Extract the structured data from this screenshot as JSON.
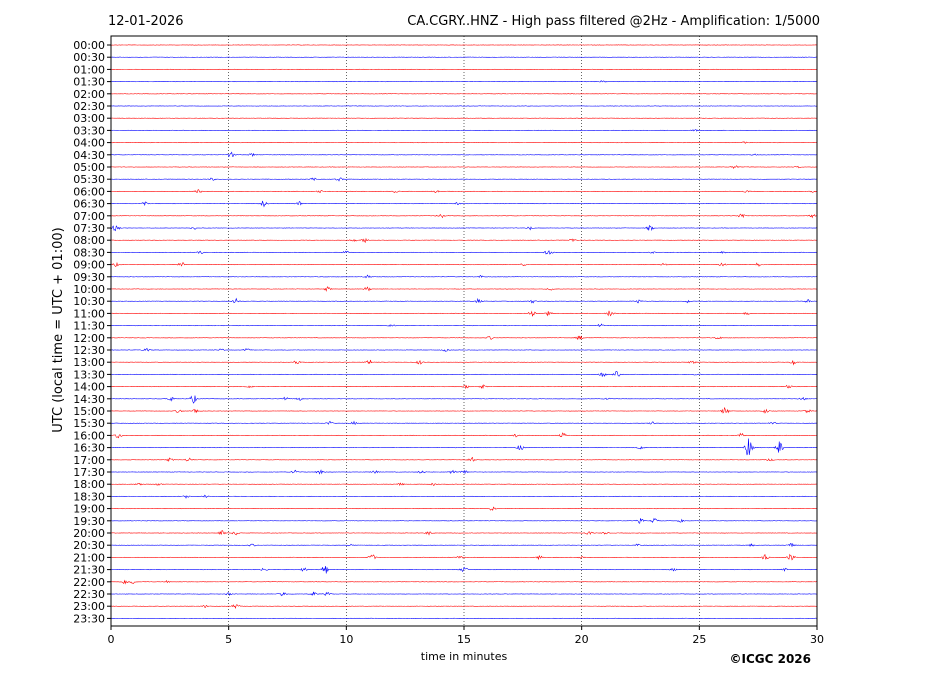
{
  "chart_data": {
    "type": "line",
    "date": "12-01-2026",
    "title": "CA.CGRY..HNZ - High pass filtered @2Hz - Amplification: 1/5000",
    "xlabel": "time in minutes",
    "ylabel": "UTC (local time = UTC + 01:00)",
    "copyright": "©ICGC 2026",
    "xlim": [
      0,
      30
    ],
    "x_ticks": [
      "0",
      "5",
      "10",
      "15",
      "20",
      "25",
      "30"
    ],
    "vertical_grid": "dotted at 5-minute intervals",
    "series_colors": [
      "#ff0000",
      "#0000ff"
    ],
    "rows": [
      {
        "label": "00:00",
        "color": "#ff0000",
        "events": []
      },
      {
        "label": "00:30",
        "color": "#0000ff",
        "events": []
      },
      {
        "label": "01:00",
        "color": "#ff0000",
        "events": []
      },
      {
        "label": "01:30",
        "color": "#0000ff",
        "events": [
          [
            20.9,
            0.2
          ]
        ]
      },
      {
        "label": "02:00",
        "color": "#ff0000",
        "events": []
      },
      {
        "label": "02:30",
        "color": "#0000ff",
        "events": []
      },
      {
        "label": "03:00",
        "color": "#ff0000",
        "events": []
      },
      {
        "label": "03:30",
        "color": "#0000ff",
        "events": [
          [
            24.8,
            0.2
          ]
        ]
      },
      {
        "label": "04:00",
        "color": "#ff0000",
        "events": [
          [
            26.9,
            0.2
          ]
        ]
      },
      {
        "label": "04:30",
        "color": "#0000ff",
        "events": [
          [
            5.1,
            0.7
          ],
          [
            6.0,
            0.4
          ],
          [
            27.3,
            0.2
          ]
        ]
      },
      {
        "label": "05:00",
        "color": "#ff0000",
        "events": [
          [
            26.5,
            0.5
          ],
          [
            29.2,
            0.2
          ]
        ]
      },
      {
        "label": "05:30",
        "color": "#0000ff",
        "events": [
          [
            4.3,
            0.3
          ],
          [
            8.6,
            0.4
          ],
          [
            9.7,
            0.4
          ]
        ]
      },
      {
        "label": "06:00",
        "color": "#ff0000",
        "events": [
          [
            3.7,
            0.7
          ],
          [
            8.9,
            0.3
          ],
          [
            12.1,
            0.3
          ],
          [
            13.8,
            0.3
          ],
          [
            27.0,
            0.3
          ],
          [
            29.8,
            0.3
          ]
        ]
      },
      {
        "label": "06:30",
        "color": "#0000ff",
        "events": [
          [
            1.4,
            0.5
          ],
          [
            6.5,
            0.8
          ],
          [
            8.0,
            0.5
          ],
          [
            14.7,
            0.3
          ]
        ]
      },
      {
        "label": "07:00",
        "color": "#ff0000",
        "events": [
          [
            14.0,
            0.6
          ],
          [
            26.8,
            0.7
          ],
          [
            29.8,
            0.4
          ]
        ]
      },
      {
        "label": "07:30",
        "color": "#0000ff",
        "events": [
          [
            0.2,
            0.9
          ],
          [
            3.5,
            0.4
          ],
          [
            17.8,
            0.4
          ],
          [
            22.9,
            0.6
          ]
        ]
      },
      {
        "label": "08:00",
        "color": "#ff0000",
        "events": [
          [
            10.3,
            0.4
          ],
          [
            10.8,
            0.5
          ],
          [
            19.6,
            0.4
          ]
        ]
      },
      {
        "label": "08:30",
        "color": "#0000ff",
        "events": [
          [
            3.8,
            0.4
          ],
          [
            10.0,
            0.4
          ],
          [
            18.6,
            0.9
          ],
          [
            23.0,
            0.2
          ],
          [
            26.0,
            0.2
          ]
        ]
      },
      {
        "label": "09:00",
        "color": "#ff0000",
        "events": [
          [
            0.2,
            0.4
          ],
          [
            3.0,
            0.6
          ],
          [
            17.5,
            0.3
          ],
          [
            23.5,
            0.3
          ],
          [
            26.0,
            0.5
          ],
          [
            27.5,
            0.4
          ]
        ]
      },
      {
        "label": "09:30",
        "color": "#0000ff",
        "events": [
          [
            10.9,
            0.4
          ],
          [
            15.7,
            0.3
          ]
        ]
      },
      {
        "label": "10:00",
        "color": "#ff0000",
        "events": [
          [
            9.2,
            0.5
          ],
          [
            10.9,
            0.5
          ],
          [
            18.7,
            0.3
          ]
        ]
      },
      {
        "label": "10:30",
        "color": "#0000ff",
        "events": [
          [
            5.3,
            0.6
          ],
          [
            15.6,
            0.5
          ],
          [
            17.9,
            0.4
          ],
          [
            22.4,
            0.5
          ],
          [
            24.5,
            0.4
          ],
          [
            29.6,
            0.4
          ]
        ]
      },
      {
        "label": "11:00",
        "color": "#ff0000",
        "events": [
          [
            17.9,
            1.0
          ],
          [
            18.6,
            0.6
          ],
          [
            21.2,
            0.7
          ],
          [
            27.0,
            0.3
          ]
        ]
      },
      {
        "label": "11:30",
        "color": "#0000ff",
        "events": [
          [
            11.9,
            0.4
          ],
          [
            20.8,
            0.4
          ]
        ]
      },
      {
        "label": "12:00",
        "color": "#ff0000",
        "events": [
          [
            16.1,
            0.4
          ],
          [
            19.9,
            0.5
          ],
          [
            25.8,
            0.4
          ]
        ]
      },
      {
        "label": "12:30",
        "color": "#0000ff",
        "events": [
          [
            1.5,
            0.5
          ],
          [
            4.7,
            0.3
          ],
          [
            5.8,
            0.4
          ],
          [
            14.2,
            0.3
          ]
        ]
      },
      {
        "label": "13:00",
        "color": "#ff0000",
        "events": [
          [
            7.9,
            0.5
          ],
          [
            11.0,
            0.6
          ],
          [
            13.1,
            0.5
          ],
          [
            24.7,
            0.4
          ],
          [
            29.0,
            0.5
          ]
        ]
      },
      {
        "label": "13:30",
        "color": "#0000ff",
        "events": [
          [
            20.9,
            0.6
          ],
          [
            21.5,
            0.7
          ],
          [
            24.9,
            0.3
          ]
        ]
      },
      {
        "label": "14:00",
        "color": "#ff0000",
        "events": [
          [
            5.9,
            0.3
          ],
          [
            15.1,
            0.4
          ],
          [
            15.8,
            0.4
          ],
          [
            28.8,
            0.4
          ]
        ]
      },
      {
        "label": "14:30",
        "color": "#0000ff",
        "events": [
          [
            2.5,
            0.6
          ],
          [
            3.5,
            1.0
          ],
          [
            7.4,
            0.4
          ],
          [
            8.0,
            0.4
          ],
          [
            21.1,
            0.3
          ],
          [
            29.4,
            0.5
          ]
        ]
      },
      {
        "label": "15:00",
        "color": "#ff0000",
        "events": [
          [
            2.9,
            0.5
          ],
          [
            3.6,
            0.6
          ],
          [
            26.1,
            0.9
          ],
          [
            27.8,
            0.5
          ],
          [
            29.6,
            0.4
          ]
        ]
      },
      {
        "label": "15:30",
        "color": "#0000ff",
        "events": [
          [
            9.3,
            0.4
          ],
          [
            10.3,
            0.4
          ],
          [
            23.0,
            0.5
          ],
          [
            28.1,
            0.3
          ]
        ]
      },
      {
        "label": "16:00",
        "color": "#ff0000",
        "events": [
          [
            0.3,
            0.8
          ],
          [
            17.2,
            0.4
          ],
          [
            19.2,
            0.6
          ],
          [
            26.8,
            0.7
          ]
        ]
      },
      {
        "label": "16:30",
        "color": "#0000ff",
        "events": [
          [
            17.4,
            0.7
          ],
          [
            22.5,
            0.4
          ],
          [
            27.1,
            2.6
          ],
          [
            28.4,
            1.6
          ]
        ]
      },
      {
        "label": "17:00",
        "color": "#ff0000",
        "events": [
          [
            2.5,
            0.4
          ],
          [
            3.3,
            0.5
          ],
          [
            15.3,
            0.7
          ],
          [
            28.0,
            0.3
          ]
        ]
      },
      {
        "label": "17:30",
        "color": "#0000ff",
        "events": [
          [
            7.8,
            0.6
          ],
          [
            8.9,
            0.8
          ],
          [
            11.2,
            0.4
          ],
          [
            13.2,
            0.4
          ],
          [
            14.5,
            0.5
          ],
          [
            15.0,
            0.8
          ]
        ]
      },
      {
        "label": "18:00",
        "color": "#ff0000",
        "events": [
          [
            1.2,
            0.4
          ],
          [
            2.0,
            0.4
          ],
          [
            12.3,
            0.3
          ],
          [
            13.7,
            0.3
          ]
        ]
      },
      {
        "label": "18:30",
        "color": "#0000ff",
        "events": [
          [
            3.2,
            0.4
          ],
          [
            4.0,
            0.3
          ]
        ]
      },
      {
        "label": "19:00",
        "color": "#ff0000",
        "events": [
          [
            16.2,
            0.5
          ]
        ]
      },
      {
        "label": "19:30",
        "color": "#0000ff",
        "events": [
          [
            22.5,
            0.6
          ],
          [
            23.1,
            0.6
          ],
          [
            24.2,
            0.3
          ]
        ]
      },
      {
        "label": "20:00",
        "color": "#ff0000",
        "events": [
          [
            4.7,
            0.6
          ],
          [
            5.3,
            0.5
          ],
          [
            13.5,
            0.4
          ],
          [
            20.3,
            0.5
          ],
          [
            21.0,
            0.3
          ]
        ]
      },
      {
        "label": "20:30",
        "color": "#0000ff",
        "events": [
          [
            6.0,
            0.3
          ],
          [
            10.2,
            0.3
          ],
          [
            22.4,
            0.3
          ],
          [
            27.2,
            0.3
          ],
          [
            28.9,
            0.5
          ]
        ]
      },
      {
        "label": "21:00",
        "color": "#ff0000",
        "events": [
          [
            11.1,
            0.7
          ],
          [
            14.8,
            0.4
          ],
          [
            18.2,
            0.4
          ],
          [
            20.0,
            0.3
          ],
          [
            27.8,
            0.8
          ],
          [
            28.9,
            1.0
          ]
        ]
      },
      {
        "label": "21:30",
        "color": "#0000ff",
        "events": [
          [
            6.5,
            0.4
          ],
          [
            8.2,
            0.4
          ],
          [
            9.1,
            1.2
          ],
          [
            15.0,
            0.7
          ],
          [
            23.9,
            0.3
          ],
          [
            28.6,
            0.4
          ]
        ]
      },
      {
        "label": "22:00",
        "color": "#ff0000",
        "events": [
          [
            0.6,
            0.5
          ],
          [
            0.9,
            0.5
          ],
          [
            2.4,
            0.3
          ]
        ]
      },
      {
        "label": "22:30",
        "color": "#0000ff",
        "events": [
          [
            5.0,
            0.3
          ],
          [
            7.3,
            0.6
          ],
          [
            8.6,
            0.5
          ],
          [
            9.2,
            0.4
          ]
        ]
      },
      {
        "label": "23:00",
        "color": "#ff0000",
        "events": [
          [
            4.0,
            0.3
          ],
          [
            5.3,
            0.5
          ]
        ]
      },
      {
        "label": "23:30",
        "color": "#0000ff",
        "events": []
      }
    ]
  }
}
